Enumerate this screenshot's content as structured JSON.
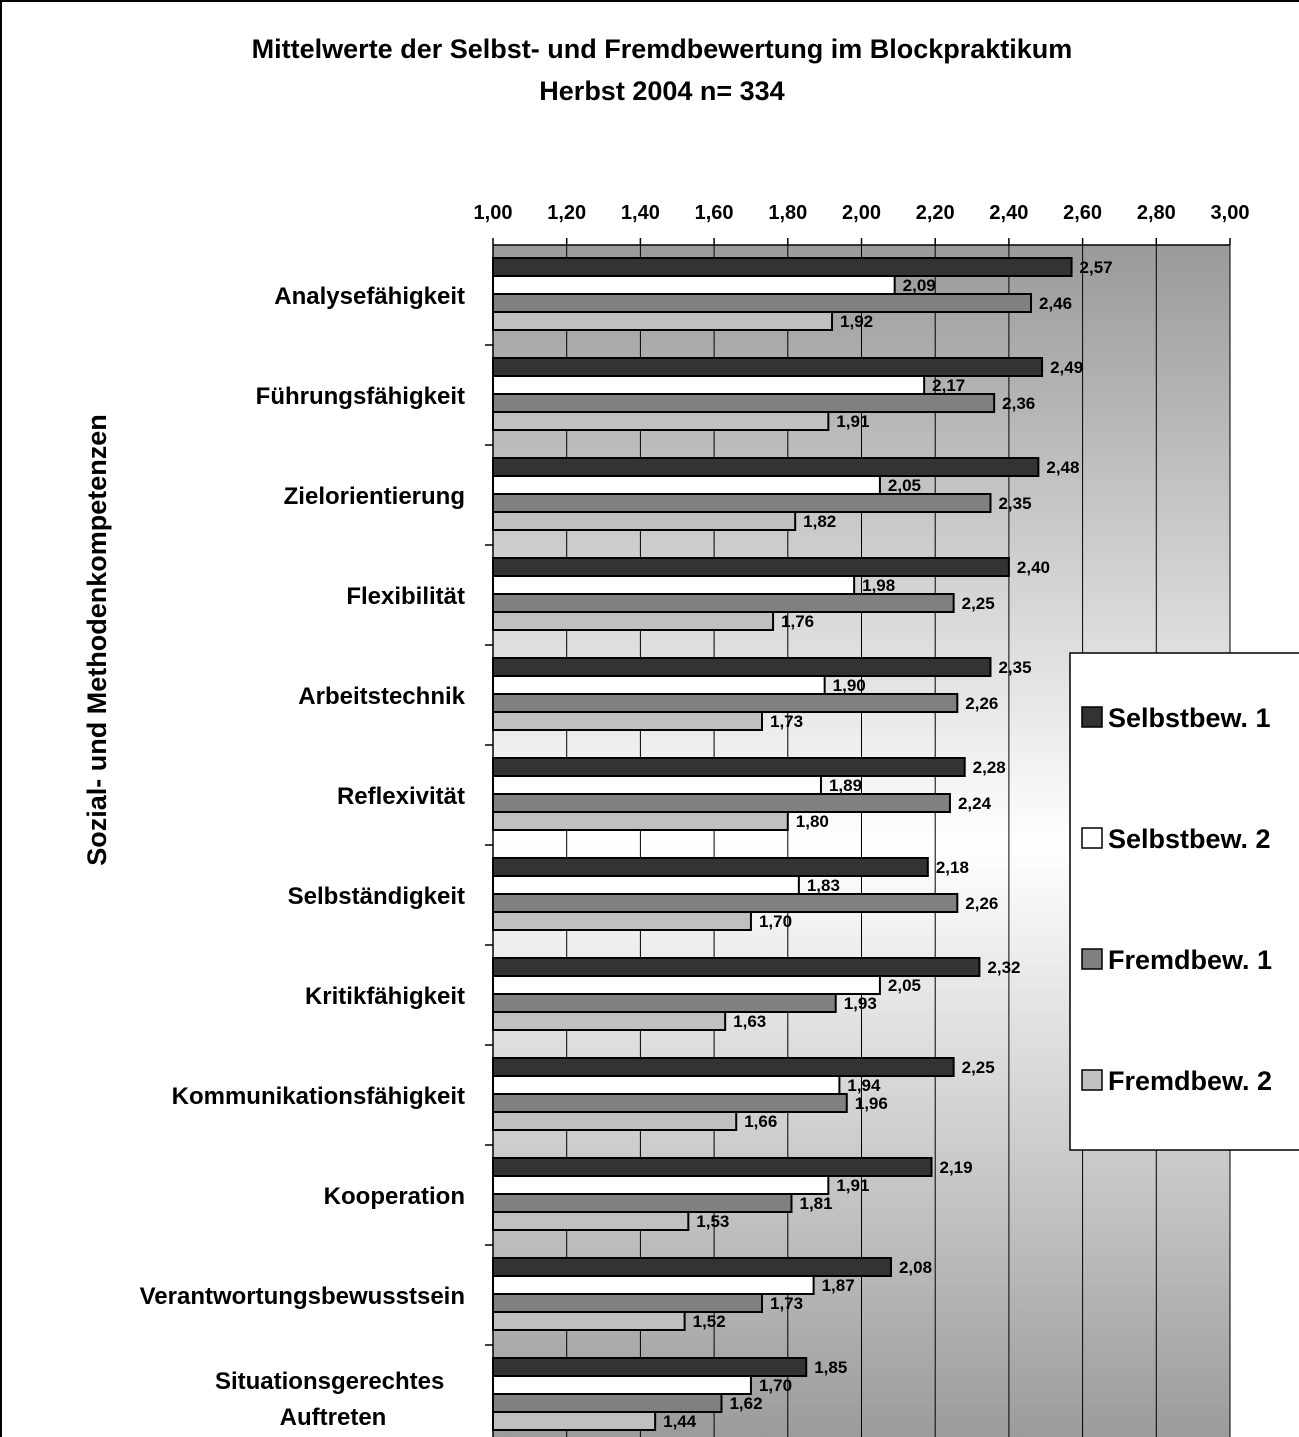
{
  "chart_data": {
    "type": "bar",
    "orientation": "horizontal",
    "title": "Mittelwerte der Selbst- und Fremdbewertung im Blockpraktikum",
    "subtitle": "Herbst 2004  n= 334",
    "y_label": "Sozial- und Methodenkompetenzen",
    "categories": [
      "Analysefähigkeit",
      "Führungsfähigkeit",
      "Zielorientierung",
      "Flexibilität",
      "Arbeitstechnik",
      "Reflexivität",
      "Selbständigkeit",
      "Kritikfähigkeit",
      "Kommunikationsfähigkeit",
      "Kooperation",
      "Verantwortungsbewusstsein",
      "Situationsgerechtes Auftreten"
    ],
    "series": [
      {
        "name": "Selbstbew. 1",
        "color": "#333333",
        "values": [
          2.57,
          2.49,
          2.48,
          2.4,
          2.35,
          2.28,
          2.18,
          2.32,
          2.25,
          2.19,
          2.08,
          1.85
        ],
        "value_labels": [
          "2,57",
          "2,49",
          "2,48",
          "2,40",
          "2,35",
          "2,28",
          "2,18",
          "2,32",
          "2,25",
          "2,19",
          "2,08",
          "1,85"
        ]
      },
      {
        "name": "Selbstbew. 2",
        "color": "#ffffff",
        "values": [
          2.09,
          2.17,
          2.05,
          1.98,
          1.9,
          1.89,
          1.83,
          2.05,
          1.94,
          1.91,
          1.87,
          1.7
        ],
        "value_labels": [
          "2,09",
          "2,17",
          "2,05",
          "1,98",
          "1,90",
          "1,89",
          "1,83",
          "2,05",
          "1,94",
          "1,91",
          "1,87",
          "1,70"
        ]
      },
      {
        "name": "Fremdbew. 1",
        "color": "#808080",
        "values": [
          2.46,
          2.36,
          2.35,
          2.25,
          2.26,
          2.24,
          2.26,
          1.93,
          1.96,
          1.81,
          1.73,
          1.62
        ],
        "value_labels": [
          "2,46",
          "2,36",
          "2,35",
          "2,25",
          "2,26",
          "2,24",
          "2,26",
          "1,93",
          "1,96",
          "1,81",
          "1,73",
          "1,62"
        ]
      },
      {
        "name": "Fremdbew. 2",
        "color": "#c0c0c0",
        "values": [
          1.92,
          1.91,
          1.82,
          1.76,
          1.73,
          1.8,
          1.7,
          1.63,
          1.66,
          1.53,
          1.52,
          1.44
        ],
        "value_labels": [
          "1,92",
          "1,91",
          "1,82",
          "1,76",
          "1,73",
          "1,80",
          "1,70",
          "1,63",
          "1,66",
          "1,53",
          "1,52",
          "1,44"
        ]
      }
    ],
    "xlim": [
      1,
      3
    ],
    "xticks": [
      {
        "value": 1,
        "label": "1,00"
      },
      {
        "value": 1.2,
        "label": "1,20"
      },
      {
        "value": 1.4,
        "label": "1,40"
      },
      {
        "value": 1.6,
        "label": "1,60"
      },
      {
        "value": 1.8,
        "label": "1,80"
      },
      {
        "value": 2,
        "label": "2,00"
      },
      {
        "value": 2.2,
        "label": "2,20"
      },
      {
        "value": 2.4,
        "label": "2,40"
      },
      {
        "value": 2.6,
        "label": "2,60"
      },
      {
        "value": 2.8,
        "label": "2,80"
      },
      {
        "value": 3,
        "label": "3,00"
      }
    ],
    "grid": true,
    "legend": "right"
  }
}
